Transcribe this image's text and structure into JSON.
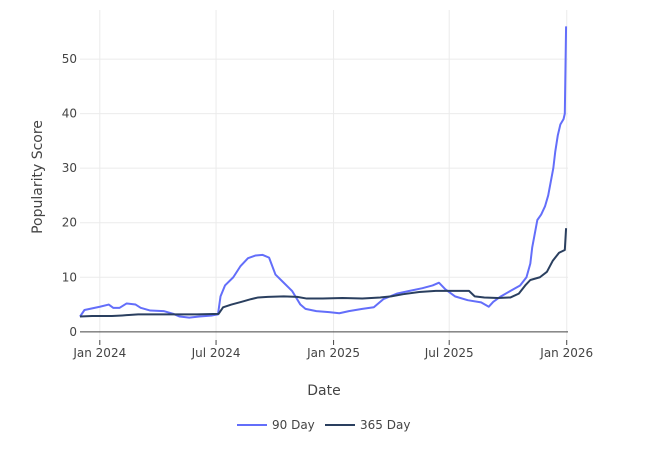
{
  "chart_data": {
    "type": "line",
    "title": "",
    "xlabel": "Date",
    "ylabel": "Popularity Score",
    "x_axis": "date",
    "xlim": [
      "2023-12-01",
      "2026-01-03"
    ],
    "ylim": [
      -1.5,
      59
    ],
    "x_ticks": [
      {
        "date": "2024-01-01",
        "label": "Jan 2024"
      },
      {
        "date": "2024-07-01",
        "label": "Jul 2024"
      },
      {
        "date": "2025-01-01",
        "label": "Jan 2025"
      },
      {
        "date": "2025-07-01",
        "label": "Jul 2025"
      },
      {
        "date": "2026-01-01",
        "label": "Jan 2026"
      }
    ],
    "y_ticks": [
      0,
      10,
      20,
      30,
      40,
      50
    ],
    "grid": true,
    "legend_position": "bottom-center",
    "series": [
      {
        "name": "90 Day",
        "color": "#636efa",
        "points": [
          [
            "2023-12-01",
            2.8
          ],
          [
            "2023-12-08",
            4.0
          ],
          [
            "2023-12-20",
            4.3
          ],
          [
            "2024-01-01",
            4.6
          ],
          [
            "2024-01-15",
            5.0
          ],
          [
            "2024-01-22",
            4.4
          ],
          [
            "2024-02-01",
            4.4
          ],
          [
            "2024-02-12",
            5.2
          ],
          [
            "2024-02-26",
            5.0
          ],
          [
            "2024-03-05",
            4.4
          ],
          [
            "2024-03-20",
            3.9
          ],
          [
            "2024-04-10",
            3.8
          ],
          [
            "2024-04-25",
            3.3
          ],
          [
            "2024-05-05",
            2.8
          ],
          [
            "2024-05-20",
            2.6
          ],
          [
            "2024-06-05",
            2.8
          ],
          [
            "2024-06-25",
            3.0
          ],
          [
            "2024-07-04",
            3.2
          ],
          [
            "2024-07-08",
            6.5
          ],
          [
            "2024-07-15",
            8.5
          ],
          [
            "2024-07-28",
            10.0
          ],
          [
            "2024-08-08",
            12.0
          ],
          [
            "2024-08-20",
            13.5
          ],
          [
            "2024-09-01",
            14.0
          ],
          [
            "2024-09-12",
            14.1
          ],
          [
            "2024-09-22",
            13.6
          ],
          [
            "2024-10-02",
            10.5
          ],
          [
            "2024-10-15",
            9.0
          ],
          [
            "2024-10-28",
            7.5
          ],
          [
            "2024-11-10",
            5.0
          ],
          [
            "2024-11-18",
            4.2
          ],
          [
            "2024-12-05",
            3.8
          ],
          [
            "2024-12-25",
            3.6
          ],
          [
            "2025-01-10",
            3.4
          ],
          [
            "2025-01-25",
            3.8
          ],
          [
            "2025-02-15",
            4.2
          ],
          [
            "2025-03-05",
            4.5
          ],
          [
            "2025-03-20",
            6.0
          ],
          [
            "2025-04-10",
            7.0
          ],
          [
            "2025-04-30",
            7.5
          ],
          [
            "2025-05-20",
            8.0
          ],
          [
            "2025-06-05",
            8.5
          ],
          [
            "2025-06-15",
            9.0
          ],
          [
            "2025-06-25",
            7.8
          ],
          [
            "2025-07-10",
            6.5
          ],
          [
            "2025-07-30",
            5.8
          ],
          [
            "2025-08-20",
            5.4
          ],
          [
            "2025-09-01",
            4.6
          ],
          [
            "2025-09-08",
            5.5
          ],
          [
            "2025-09-20",
            6.5
          ],
          [
            "2025-10-05",
            7.5
          ],
          [
            "2025-10-20",
            8.5
          ],
          [
            "2025-10-30",
            10.0
          ],
          [
            "2025-11-05",
            12.5
          ],
          [
            "2025-11-08",
            15.5
          ],
          [
            "2025-11-12",
            18.0
          ],
          [
            "2025-11-16",
            20.5
          ],
          [
            "2025-11-22",
            21.5
          ],
          [
            "2025-11-28",
            23.0
          ],
          [
            "2025-12-03",
            25.0
          ],
          [
            "2025-12-07",
            27.5
          ],
          [
            "2025-12-11",
            30.0
          ],
          [
            "2025-12-14",
            33.0
          ],
          [
            "2025-12-18",
            36.0
          ],
          [
            "2025-12-22",
            38.0
          ],
          [
            "2025-12-27",
            39.0
          ],
          [
            "2025-12-29",
            40.0
          ],
          [
            "2025-12-31",
            56.0
          ]
        ]
      },
      {
        "name": "365 Day",
        "color": "#2a3f5f",
        "points": [
          [
            "2023-12-01",
            2.8
          ],
          [
            "2023-12-20",
            2.9
          ],
          [
            "2024-01-20",
            2.9
          ],
          [
            "2024-02-05",
            3.0
          ],
          [
            "2024-03-01",
            3.2
          ],
          [
            "2024-04-01",
            3.2
          ],
          [
            "2024-05-01",
            3.2
          ],
          [
            "2024-06-01",
            3.2
          ],
          [
            "2024-07-05",
            3.3
          ],
          [
            "2024-07-12",
            4.5
          ],
          [
            "2024-07-25",
            5.0
          ],
          [
            "2024-08-10",
            5.5
          ],
          [
            "2024-08-25",
            6.0
          ],
          [
            "2024-09-05",
            6.3
          ],
          [
            "2024-09-20",
            6.4
          ],
          [
            "2024-10-15",
            6.5
          ],
          [
            "2024-11-05",
            6.4
          ],
          [
            "2024-11-20",
            6.1
          ],
          [
            "2024-12-15",
            6.1
          ],
          [
            "2025-01-15",
            6.2
          ],
          [
            "2025-02-15",
            6.1
          ],
          [
            "2025-03-15",
            6.3
          ],
          [
            "2025-04-01",
            6.5
          ],
          [
            "2025-04-20",
            6.9
          ],
          [
            "2025-05-15",
            7.3
          ],
          [
            "2025-06-10",
            7.5
          ],
          [
            "2025-07-10",
            7.5
          ],
          [
            "2025-08-01",
            7.5
          ],
          [
            "2025-08-10",
            6.5
          ],
          [
            "2025-08-25",
            6.3
          ],
          [
            "2025-09-15",
            6.2
          ],
          [
            "2025-10-05",
            6.3
          ],
          [
            "2025-10-18",
            7.0
          ],
          [
            "2025-10-28",
            8.5
          ],
          [
            "2025-11-05",
            9.5
          ],
          [
            "2025-11-20",
            10.0
          ],
          [
            "2025-12-01",
            11.0
          ],
          [
            "2025-12-10",
            13.0
          ],
          [
            "2025-12-20",
            14.5
          ],
          [
            "2025-12-29",
            15.0
          ],
          [
            "2025-12-31",
            19.0
          ]
        ]
      }
    ]
  }
}
